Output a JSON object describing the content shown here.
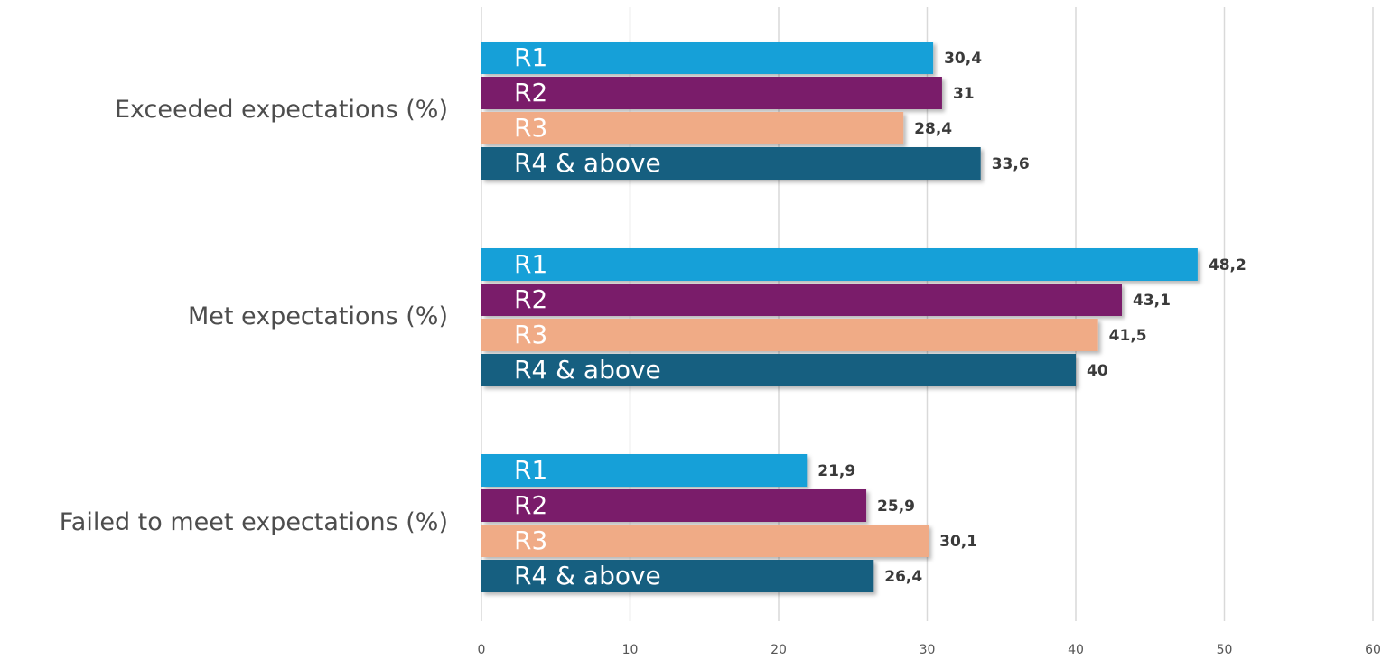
{
  "chart_data": {
    "type": "bar",
    "orientation": "horizontal",
    "categories": [
      "Exceeded expectations (%)",
      "Met expectations (%)",
      "Failed to meet expectations (%)"
    ],
    "series": [
      {
        "name": "R1",
        "color": "#12a0d8",
        "values": [
          30.4,
          48.2,
          21.9
        ],
        "value_labels": [
          "30,4",
          "48,2",
          "21,9"
        ]
      },
      {
        "name": "R2",
        "color": "#7a1f6a",
        "values": [
          31,
          43.1,
          25.9
        ],
        "value_labels": [
          "31",
          "43,1",
          "25,9"
        ]
      },
      {
        "name": "R3",
        "color": "#f0ab86",
        "values": [
          28.4,
          41.5,
          30.1
        ],
        "value_labels": [
          "28,4",
          "41,5",
          "30,1"
        ]
      },
      {
        "name": "R4 & above",
        "color": "#175f80",
        "values": [
          33.6,
          40,
          26.4
        ],
        "value_labels": [
          "33,6",
          "40",
          "26,4"
        ]
      }
    ],
    "xlim": [
      0,
      60
    ],
    "xticks": [
      0,
      10,
      20,
      30,
      40,
      50,
      60
    ],
    "grid": true,
    "legend": "inside-bars",
    "title": "",
    "xlabel": "",
    "ylabel": ""
  }
}
